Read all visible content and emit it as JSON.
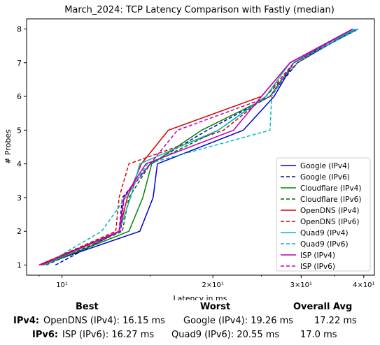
{
  "chart_data": {
    "type": "line",
    "title": "March_2024: TCP Latency Comparison with Fastly (median)",
    "xlabel": "Latency in ms",
    "ylabel": "# Probes",
    "xscale": "log",
    "xlim": [
      8.5,
      42
    ],
    "ylim": [
      0.7,
      8.3
    ],
    "x_ticks": [
      {
        "value": 10,
        "label": "10¹"
      },
      {
        "value": 20,
        "label": "2×10¹"
      },
      {
        "value": 30,
        "label": "3×10¹"
      },
      {
        "value": 40,
        "label": "4×10¹"
      }
    ],
    "y_ticks": [
      1,
      2,
      3,
      4,
      5,
      6,
      7,
      8
    ],
    "legend_position": "lower-right",
    "grid": false,
    "series": [
      {
        "name": "Google (IPv4)",
        "color": "#0000cc",
        "dash": "solid",
        "x": [
          9.1,
          14.3,
          15.2,
          15.5,
          23.0,
          26.5,
          29.0,
          39.0
        ],
        "y": [
          1,
          2,
          3,
          4,
          5,
          6,
          7,
          8
        ]
      },
      {
        "name": "Google (IPv6)",
        "color": "#0000cc",
        "dash": "dashed",
        "x": [
          9.7,
          13.0,
          13.2,
          15.0,
          19.5,
          26.0,
          29.5,
          38.5
        ],
        "y": [
          1,
          2,
          3,
          4,
          5,
          6,
          7,
          8
        ]
      },
      {
        "name": "Cloudflare (IPv4)",
        "color": "#008800",
        "dash": "solid",
        "x": [
          9.2,
          13.6,
          14.5,
          15.1,
          19.0,
          26.0,
          29.0,
          38.0
        ],
        "y": [
          1,
          2,
          3,
          4,
          5,
          6,
          7,
          8
        ]
      },
      {
        "name": "Cloudflare (IPv6)",
        "color": "#006600",
        "dash": "dashed",
        "x": [
          9.3,
          13.2,
          13.6,
          15.0,
          20.5,
          25.5,
          29.5,
          38.5
        ],
        "y": [
          1,
          2,
          3,
          4,
          5,
          6,
          7,
          8
        ]
      },
      {
        "name": "OpenDNS (IPv4)",
        "color": "#dd0000",
        "dash": "solid",
        "x": [
          9.0,
          13.0,
          13.5,
          14.4,
          16.3,
          25.0,
          28.5,
          38.0
        ],
        "y": [
          1,
          2,
          3,
          4,
          5,
          6,
          7,
          8
        ]
      },
      {
        "name": "OpenDNS (IPv6)",
        "color": "#dd0000",
        "dash": "dashed",
        "x": [
          9.0,
          12.8,
          13.0,
          13.6,
          21.0,
          25.5,
          29.0,
          38.0
        ],
        "y": [
          1,
          2,
          3,
          4,
          5,
          6,
          7,
          8
        ]
      },
      {
        "name": "Quad9 (IPv4)",
        "color": "#00bbbb",
        "dash": "solid",
        "x": [
          9.2,
          13.0,
          13.7,
          14.3,
          20.5,
          25.5,
          28.5,
          38.5
        ],
        "y": [
          1,
          2,
          3,
          4,
          5,
          6,
          7,
          8
        ]
      },
      {
        "name": "Quad9 (IPv6)",
        "color": "#00bbbb",
        "dash": "dashed",
        "x": [
          9.2,
          12.0,
          13.4,
          14.8,
          26.0,
          26.2,
          29.0,
          39.0
        ],
        "y": [
          1,
          2,
          3,
          4,
          5,
          6,
          7,
          8
        ]
      },
      {
        "name": "ISP (IPv4)",
        "color": "#bb00bb",
        "dash": "solid",
        "x": [
          9.1,
          13.0,
          13.3,
          14.7,
          22.0,
          25.0,
          28.5,
          38.0
        ],
        "y": [
          1,
          2,
          3,
          4,
          5,
          6,
          7,
          8
        ]
      },
      {
        "name": "ISP (IPv6)",
        "color": "#bb00bb",
        "dash": "dashed",
        "x": [
          9.1,
          13.1,
          13.3,
          15.0,
          17.0,
          26.0,
          29.0,
          38.0
        ],
        "y": [
          1,
          2,
          3,
          4,
          5,
          6,
          7,
          8
        ]
      }
    ]
  },
  "summary": {
    "headers": {
      "best": "Best",
      "worst": "Worst",
      "avg": "Overall Avg"
    },
    "rows": [
      {
        "key": "IPv4:",
        "best": "OpenDNS (IPv4): 16.15 ms",
        "worst": "Google (IPv4): 19.26 ms",
        "avg": "17.22 ms"
      },
      {
        "key": "IPv6:",
        "best": "ISP (IPv6): 16.27 ms",
        "worst": "Quad9 (IPv6): 20.55 ms",
        "avg": "17.0 ms"
      }
    ]
  }
}
